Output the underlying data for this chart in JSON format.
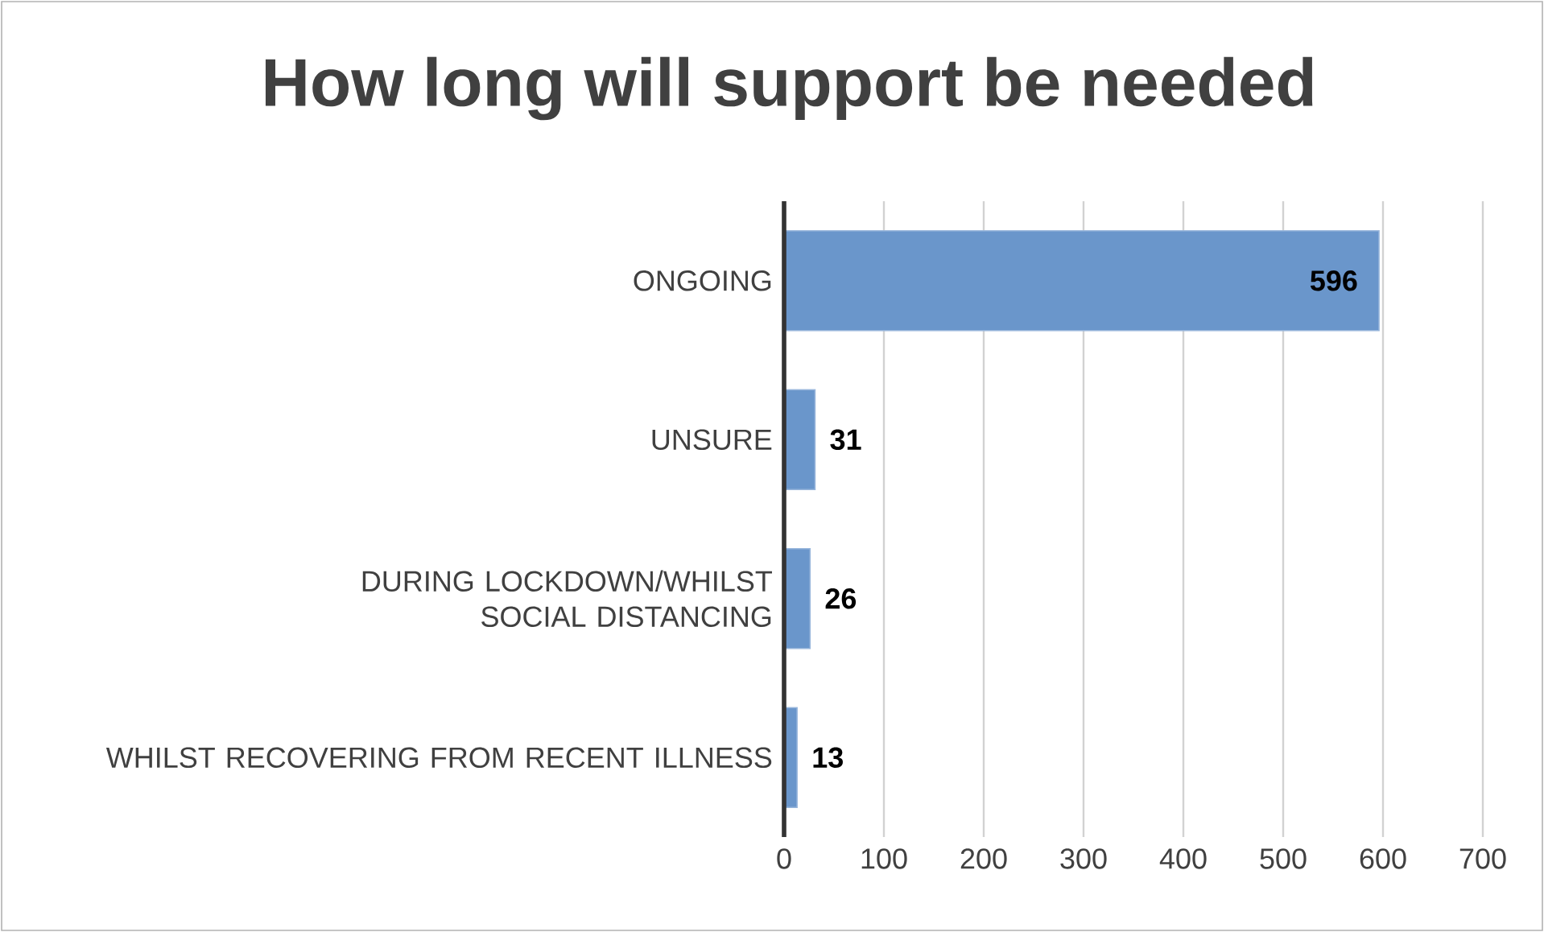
{
  "chart_data": {
    "type": "bar",
    "orientation": "horizontal",
    "title": "How long will support be needed",
    "categories": [
      "ONGOING",
      "UNSURE",
      "DURING LOCKDOWN/WHILST SOCIAL DISTANCING",
      "WHILST RECOVERING FROM RECENT ILLNESS"
    ],
    "values": [
      596,
      31,
      26,
      13
    ],
    "color": "#6a96cb",
    "data_labels": true,
    "xlim": [
      0,
      700
    ],
    "xticks": [
      0,
      100,
      200,
      300,
      400,
      500,
      600,
      700
    ],
    "grid": "x"
  }
}
